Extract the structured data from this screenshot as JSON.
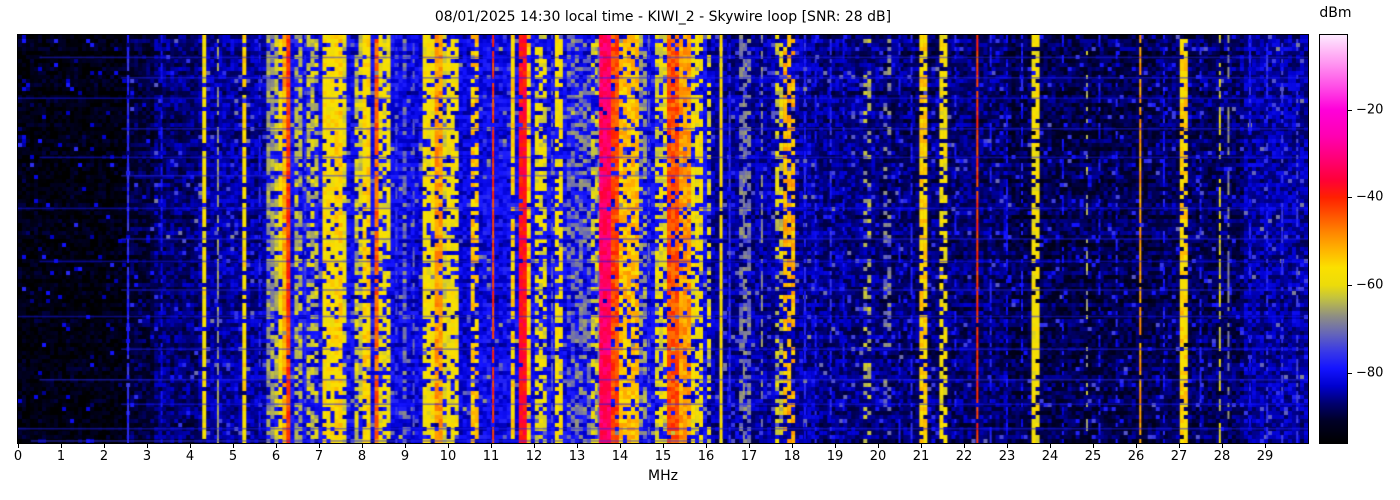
{
  "chart_data": {
    "type": "heatmap",
    "subtype": "spectrogram-waterfall",
    "title": "08/01/2025 14:30 local time - KIWI_2 - Skywire loop [SNR: 28 dB]",
    "xlabel": "MHz",
    "x_range": [
      0,
      30
    ],
    "x_ticks": [
      0,
      1,
      2,
      3,
      4,
      5,
      6,
      7,
      8,
      9,
      10,
      11,
      12,
      13,
      14,
      15,
      16,
      17,
      18,
      19,
      20,
      21,
      22,
      23,
      24,
      25,
      26,
      27,
      28,
      29
    ],
    "grid": false,
    "legend": "none",
    "colorbar": {
      "label": "dBm",
      "tick_values": [
        -20,
        -40,
        -60,
        -80
      ],
      "tick_labels": [
        "−20",
        "−40",
        "−60",
        "−80"
      ],
      "vmin": -96,
      "vmax": -3,
      "colormap_stops": [
        [
          -96,
          "#000000"
        ],
        [
          -91,
          "#000026"
        ],
        [
          -87,
          "#00006e"
        ],
        [
          -83,
          "#0000cf"
        ],
        [
          -79,
          "#1414ff"
        ],
        [
          -75,
          "#3a3ae6"
        ],
        [
          -71,
          "#6666b8"
        ],
        [
          -67,
          "#8f8f82"
        ],
        [
          -63,
          "#c2c240"
        ],
        [
          -60,
          "#ecdc0a"
        ],
        [
          -56,
          "#fbe000"
        ],
        [
          -52,
          "#ffb400"
        ],
        [
          -48,
          "#ff8600"
        ],
        [
          -44,
          "#ff5200"
        ],
        [
          -40,
          "#ff2000"
        ],
        [
          -36,
          "#ff0038"
        ],
        [
          -31,
          "#ff0078"
        ],
        [
          -26,
          "#ff00b2"
        ],
        [
          -20,
          "#ff00da"
        ],
        [
          -15,
          "#ff4ae6"
        ],
        [
          -10,
          "#ff8ef0"
        ],
        [
          -6,
          "#ffc2f8"
        ],
        [
          -3,
          "#fdeaff"
        ]
      ]
    },
    "noise_floor_dbm": [
      [
        0.0,
        2.5,
        -94
      ],
      [
        2.5,
        3.2,
        -90
      ],
      [
        3.2,
        4.2,
        -87
      ],
      [
        4.2,
        5.8,
        -85
      ],
      [
        5.8,
        9.0,
        -81
      ],
      [
        9.0,
        10.8,
        -82
      ],
      [
        10.8,
        16.0,
        -81
      ],
      [
        16.0,
        18.5,
        -85
      ],
      [
        18.5,
        20.0,
        -86
      ],
      [
        20.0,
        23.0,
        -87
      ],
      [
        23.0,
        26.5,
        -89
      ],
      [
        26.5,
        28.5,
        -88
      ],
      [
        28.5,
        30.0,
        -85
      ]
    ],
    "signal_bands": [
      [
        4.28,
        4.4,
        -58,
        0.9
      ],
      [
        5.18,
        5.3,
        -56,
        0.9
      ],
      [
        5.8,
        5.93,
        -66,
        0.7
      ],
      [
        5.95,
        6.03,
        -63,
        0.6
      ],
      [
        6.05,
        6.13,
        -58,
        0.8
      ],
      [
        6.15,
        6.23,
        -51,
        0.85
      ],
      [
        6.27,
        6.36,
        -42,
        0.95
      ],
      [
        6.4,
        6.62,
        -64,
        0.6
      ],
      [
        6.75,
        6.95,
        -63,
        0.55
      ],
      [
        7.1,
        7.35,
        -57,
        0.85
      ],
      [
        7.38,
        7.55,
        -55,
        0.88
      ],
      [
        7.57,
        7.68,
        -60,
        0.7
      ],
      [
        7.78,
        7.97,
        -62,
        0.6
      ],
      [
        8.03,
        8.24,
        -55,
        0.85
      ],
      [
        8.27,
        8.37,
        -45,
        0.95
      ],
      [
        8.4,
        8.64,
        -59,
        0.7
      ],
      [
        8.93,
        9.07,
        -70,
        0.55
      ],
      [
        9.38,
        9.7,
        -58,
        0.78
      ],
      [
        9.72,
        9.84,
        -50,
        0.85
      ],
      [
        9.86,
        9.97,
        -61,
        0.7
      ],
      [
        10.0,
        10.25,
        -58,
        0.7
      ],
      [
        10.5,
        10.7,
        -54,
        0.6
      ],
      [
        11.44,
        11.58,
        -55,
        0.85
      ],
      [
        11.6,
        11.79,
        -38,
        0.97
      ],
      [
        11.81,
        11.97,
        -54,
        0.8
      ],
      [
        12.0,
        12.3,
        -60,
        0.6
      ],
      [
        12.53,
        12.7,
        -58,
        0.7
      ],
      [
        12.8,
        13.32,
        -69,
        0.45
      ],
      [
        13.36,
        13.47,
        -62,
        0.5
      ],
      [
        13.54,
        13.78,
        -33,
        0.98
      ],
      [
        13.8,
        13.98,
        -43,
        0.9
      ],
      [
        14.01,
        14.4,
        -53,
        0.75
      ],
      [
        14.45,
        14.62,
        -66,
        0.5
      ],
      [
        14.78,
        15.08,
        -60,
        0.65
      ],
      [
        15.12,
        15.34,
        -44,
        0.88
      ],
      [
        15.37,
        15.64,
        -50,
        0.85
      ],
      [
        15.68,
        15.9,
        -58,
        0.65
      ],
      [
        16.0,
        16.12,
        -61,
        0.55
      ],
      [
        16.75,
        17.05,
        -69,
        0.5
      ],
      [
        17.58,
        17.8,
        -62,
        0.5
      ],
      [
        17.82,
        18.1,
        -52,
        0.6
      ],
      [
        19.66,
        19.86,
        -65,
        0.35
      ],
      [
        20.16,
        20.28,
        -69,
        0.3
      ],
      [
        20.94,
        21.13,
        -55,
        0.85
      ],
      [
        21.4,
        21.58,
        -58,
        0.65
      ],
      [
        23.6,
        23.72,
        -58,
        0.7
      ],
      [
        27.04,
        27.18,
        -55,
        0.8
      ]
    ],
    "thin_lines": [
      [
        2.56,
        -77,
        0.9,
        2
      ],
      [
        3.34,
        -81,
        0.6,
        2
      ],
      [
        4.65,
        -67,
        0.8,
        2
      ],
      [
        5.62,
        -78,
        0.6,
        2
      ],
      [
        6.68,
        -75,
        0.5,
        2
      ],
      [
        8.8,
        -74,
        0.5,
        2
      ],
      [
        9.2,
        -72,
        0.4,
        2
      ],
      [
        11.05,
        -42,
        0.95,
        2
      ],
      [
        12.42,
        -72,
        0.5,
        2
      ],
      [
        13.5,
        -70,
        0.5,
        2
      ],
      [
        14.67,
        -72,
        0.4,
        2
      ],
      [
        16.35,
        -57,
        0.95,
        3
      ],
      [
        16.55,
        -77,
        0.7,
        2
      ],
      [
        16.88,
        -68,
        0.5,
        2
      ],
      [
        17.3,
        -68,
        0.55,
        2
      ],
      [
        18.3,
        -78,
        0.6,
        2
      ],
      [
        18.55,
        -79,
        0.5,
        2
      ],
      [
        18.9,
        -77,
        0.7,
        2
      ],
      [
        19.2,
        -80,
        0.5,
        2
      ],
      [
        20.5,
        -79,
        0.5,
        2
      ],
      [
        20.78,
        -78,
        0.5,
        2
      ],
      [
        21.8,
        -79,
        0.5,
        2
      ],
      [
        22.31,
        -42,
        0.97,
        2
      ],
      [
        22.62,
        -79,
        0.5,
        2
      ],
      [
        23.0,
        -80,
        0.5,
        2
      ],
      [
        23.35,
        -79,
        0.4,
        2
      ],
      [
        24.3,
        -80,
        0.4,
        2
      ],
      [
        24.86,
        -65,
        0.45,
        2
      ],
      [
        25.15,
        -80,
        0.4,
        2
      ],
      [
        25.55,
        -79,
        0.4,
        2
      ],
      [
        26.1,
        -50,
        0.9,
        2
      ],
      [
        26.65,
        -79,
        0.4,
        2
      ],
      [
        27.5,
        -78,
        0.4,
        2
      ],
      [
        27.95,
        -62,
        0.65,
        2
      ],
      [
        28.15,
        -68,
        0.45,
        2
      ],
      [
        28.65,
        -78,
        0.5,
        2
      ],
      [
        29.05,
        -77,
        0.5,
        2
      ],
      [
        29.4,
        -76,
        0.5,
        2
      ],
      [
        29.75,
        -75,
        0.5,
        2
      ]
    ],
    "h_lines": [
      [
        0.055,
        0.5,
        30,
        -78
      ],
      [
        0.105,
        2.4,
        30,
        -78
      ],
      [
        0.155,
        0.0,
        30,
        -80
      ],
      [
        0.23,
        2.4,
        30,
        -78
      ],
      [
        0.3,
        0.5,
        30,
        -79
      ],
      [
        0.345,
        2.4,
        16,
        -77
      ],
      [
        0.425,
        0.0,
        30,
        -79
      ],
      [
        0.5,
        2.4,
        30,
        -78
      ],
      [
        0.555,
        0.5,
        30,
        -80
      ],
      [
        0.625,
        2.4,
        30,
        -78
      ],
      [
        0.69,
        0.0,
        30,
        -79
      ],
      [
        0.77,
        2.4,
        30,
        -78
      ],
      [
        0.845,
        0.5,
        30,
        -77
      ],
      [
        0.905,
        2.4,
        30,
        -79
      ],
      [
        0.965,
        0.0,
        30,
        -78
      ],
      [
        0.995,
        0.3,
        16,
        -76
      ]
    ]
  }
}
